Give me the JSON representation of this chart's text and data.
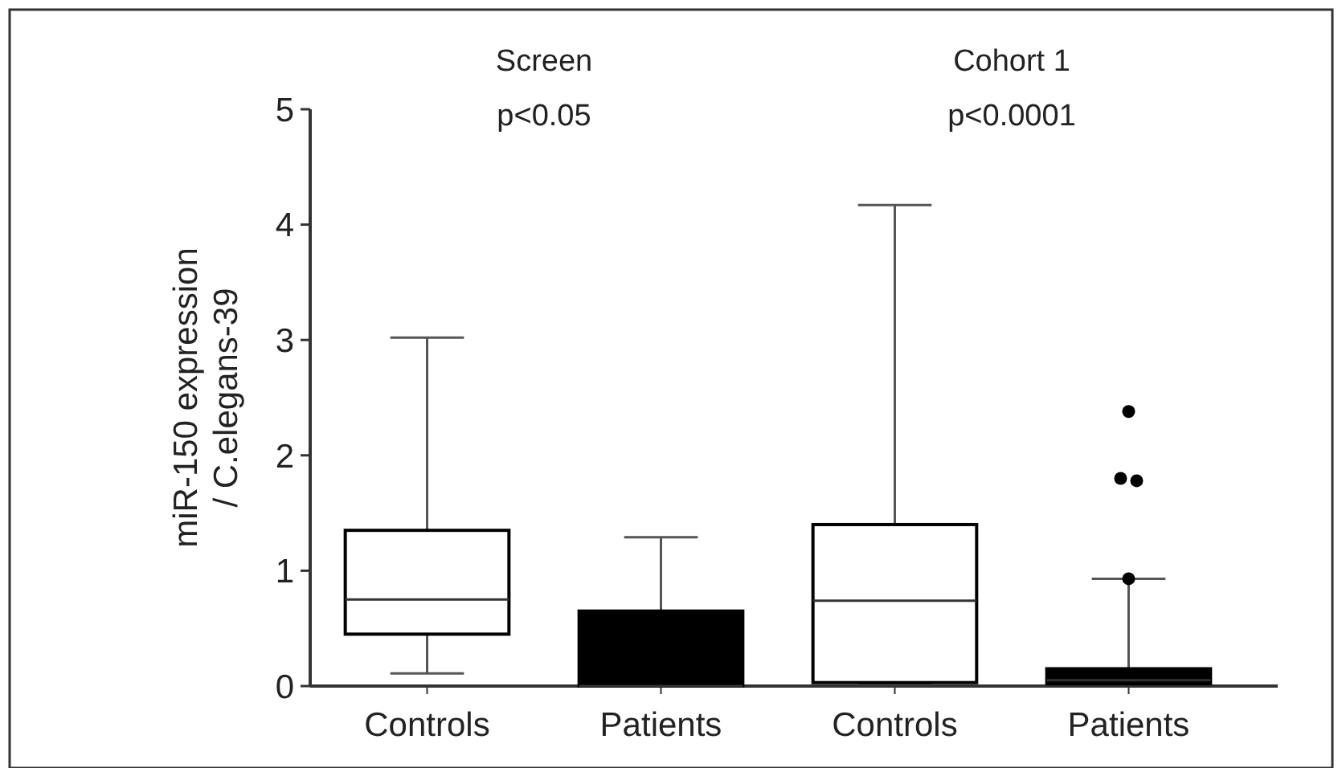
{
  "chart_data": {
    "type": "box",
    "ylabel": "miR-150 expression\n/ C.elegans-39",
    "categories": [
      "Controls",
      "Patients",
      "Controls",
      "Patients"
    ],
    "colors": [
      "#ffffff",
      "#000000",
      "#ffffff",
      "#000000"
    ],
    "boxes": [
      {
        "low": 0.11,
        "q1": 0.45,
        "median": 0.75,
        "q3": 1.35,
        "high": 3.02
      },
      {
        "low": 0,
        "q1": 0,
        "median": 0,
        "q3": 0.65,
        "high": 1.29
      },
      {
        "low": 0.02,
        "q1": 0.03,
        "median": 0.74,
        "q3": 1.4,
        "high": 4.17
      },
      {
        "low": 0.02,
        "q1": 0.02,
        "median": 0.05,
        "q3": 0.15,
        "high": 0.93,
        "outliers": [
          2.38,
          1.78,
          1.8,
          0.93
        ]
      }
    ],
    "ylim": [
      0,
      5
    ],
    "yticks": [
      0,
      1,
      2,
      3,
      4,
      5
    ],
    "annotations": [
      "Screen",
      "p<0.05",
      "Cohort 1",
      "p<0.0001"
    ]
  }
}
